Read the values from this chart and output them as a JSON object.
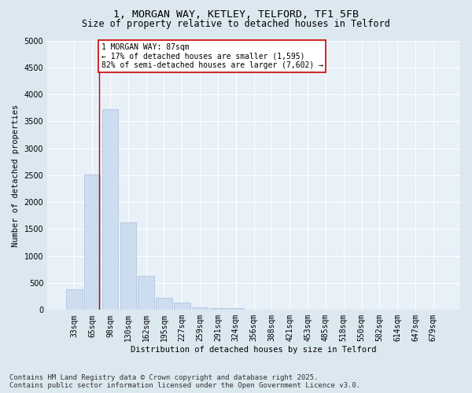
{
  "title_line1": "1, MORGAN WAY, KETLEY, TELFORD, TF1 5FB",
  "title_line2": "Size of property relative to detached houses in Telford",
  "xlabel": "Distribution of detached houses by size in Telford",
  "ylabel": "Number of detached properties",
  "categories": [
    "33sqm",
    "65sqm",
    "98sqm",
    "130sqm",
    "162sqm",
    "195sqm",
    "227sqm",
    "259sqm",
    "291sqm",
    "324sqm",
    "356sqm",
    "388sqm",
    "421sqm",
    "453sqm",
    "485sqm",
    "518sqm",
    "550sqm",
    "582sqm",
    "614sqm",
    "647sqm",
    "679sqm"
  ],
  "values": [
    380,
    2520,
    3720,
    1630,
    630,
    220,
    130,
    55,
    40,
    40,
    5,
    0,
    0,
    0,
    0,
    0,
    0,
    0,
    0,
    0,
    0
  ],
  "bar_color": "#ccddf0",
  "bar_edge_color": "#aabdd8",
  "vline_x": 1.4,
  "vline_color": "#cc0000",
  "annotation_text": "1 MORGAN WAY: 87sqm\n← 17% of detached houses are smaller (1,595)\n82% of semi-detached houses are larger (7,602) →",
  "annotation_box_color": "#ffffff",
  "annotation_box_edge": "#cc0000",
  "ylim": [
    0,
    5000
  ],
  "yticks": [
    0,
    500,
    1000,
    1500,
    2000,
    2500,
    3000,
    3500,
    4000,
    4500,
    5000
  ],
  "footer_line1": "Contains HM Land Registry data © Crown copyright and database right 2025.",
  "footer_line2": "Contains public sector information licensed under the Open Government Licence v3.0.",
  "bg_color": "#dce8f0",
  "plot_bg_color": "#e8f0f8",
  "grid_color": "#ffffff",
  "title_fontsize": 9.5,
  "subtitle_fontsize": 8.5,
  "axis_label_fontsize": 7.5,
  "tick_fontsize": 7,
  "annotation_fontsize": 7,
  "footer_fontsize": 6.5
}
